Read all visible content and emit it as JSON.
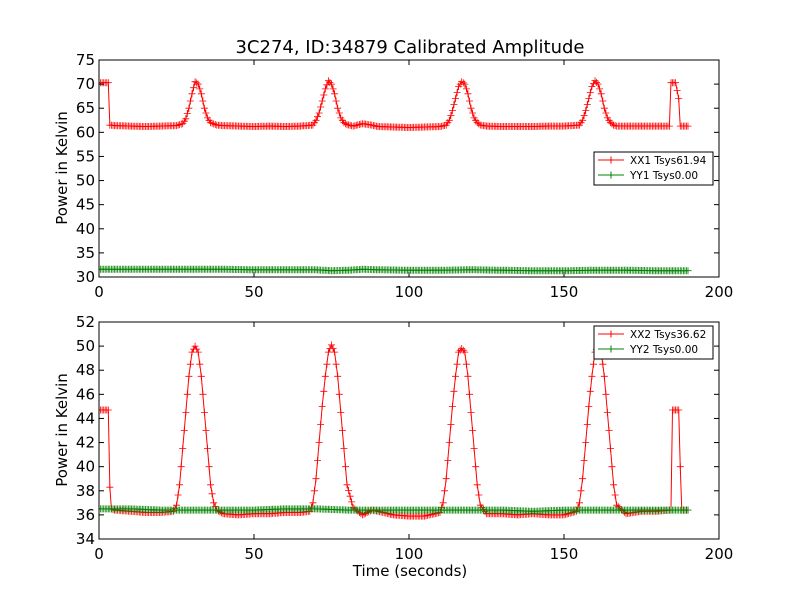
{
  "colors": {
    "xx": "#ff0000",
    "yy": "#008000",
    "axes": "#000000",
    "background": "#ffffff"
  },
  "chart_data": [
    {
      "type": "line",
      "title": "3C274, ID:34879 Calibrated Amplitude",
      "xlabel": "",
      "ylabel": "Power in Kelvin",
      "xlim": [
        0,
        200
      ],
      "ylim": [
        30,
        75
      ],
      "xticks": [
        0,
        50,
        100,
        150,
        200
      ],
      "yticks": [
        30,
        35,
        40,
        45,
        50,
        55,
        60,
        65,
        70,
        75
      ],
      "grid": false,
      "legend_position": "right",
      "series": [
        {
          "name": "XX1 Tsys61.94",
          "color": "#ff0000",
          "marker": "plus",
          "x": [
            0,
            2,
            3,
            3.5,
            5,
            10,
            15,
            20,
            25,
            27,
            28,
            29,
            30,
            31,
            32,
            33,
            34,
            35,
            36,
            38,
            40,
            45,
            50,
            55,
            60,
            65,
            69,
            70,
            71,
            72,
            73,
            74,
            75,
            76,
            77,
            78,
            79,
            80,
            82,
            85,
            88,
            90,
            95,
            100,
            105,
            110,
            112,
            113,
            114,
            115,
            116,
            117,
            118,
            119,
            120,
            121,
            122,
            123,
            125,
            130,
            135,
            140,
            145,
            150,
            155,
            156,
            157,
            158,
            159,
            160,
            161,
            162,
            163,
            164,
            165,
            166,
            167,
            170,
            175,
            180,
            184,
            184.5,
            185,
            186,
            187,
            187.5,
            188,
            190
          ],
          "y": [
            70.3,
            70.3,
            70.3,
            61.5,
            61.4,
            61.3,
            61.2,
            61.3,
            61.4,
            61.8,
            62.8,
            65,
            68,
            70.5,
            70,
            68,
            65,
            63,
            62,
            61.5,
            61.4,
            61.3,
            61.2,
            61.3,
            61.2,
            61.3,
            61.5,
            62.5,
            64,
            66.5,
            69,
            70.7,
            70,
            68,
            65,
            63,
            62,
            61.6,
            61.3,
            61.8,
            61.5,
            61.2,
            61.1,
            61.0,
            61.1,
            61.2,
            61.5,
            62.5,
            64.5,
            67,
            69.5,
            70.5,
            70,
            68,
            65,
            63,
            62,
            61.5,
            61.3,
            61.2,
            61.2,
            61.2,
            61.3,
            61.3,
            61.5,
            62.5,
            64.5,
            67,
            69.5,
            70.7,
            70,
            68,
            65,
            63,
            62,
            61.5,
            61.3,
            61.3,
            61.3,
            61.3,
            61.3,
            70.3,
            70.3,
            70.3,
            67,
            61.3,
            61.3,
            61.3
          ]
        },
        {
          "name": "YY1 Tsys0.00",
          "color": "#008000",
          "marker": "plus",
          "x": [
            0,
            10,
            20,
            30,
            40,
            50,
            60,
            70,
            75,
            80,
            85,
            90,
            100,
            110,
            120,
            130,
            140,
            150,
            160,
            170,
            180,
            190
          ],
          "y": [
            31.6,
            31.6,
            31.6,
            31.6,
            31.6,
            31.5,
            31.5,
            31.5,
            31.3,
            31.4,
            31.6,
            31.5,
            31.4,
            31.4,
            31.5,
            31.4,
            31.3,
            31.3,
            31.4,
            31.4,
            31.3,
            31.3
          ]
        }
      ]
    },
    {
      "type": "line",
      "title": "",
      "xlabel": "Time (seconds)",
      "ylabel": "Power in Kelvin",
      "xlim": [
        0,
        200
      ],
      "ylim": [
        34,
        52
      ],
      "xticks": [
        0,
        50,
        100,
        150,
        200
      ],
      "yticks": [
        34,
        36,
        38,
        40,
        42,
        44,
        46,
        48,
        50,
        52
      ],
      "grid": false,
      "legend_position": "top-right",
      "series": [
        {
          "name": "XX2 Tsys36.62",
          "color": "#ff0000",
          "marker": "plus",
          "x": [
            0,
            2,
            3,
            3.5,
            4,
            5,
            10,
            15,
            20,
            24,
            25,
            26,
            27,
            28,
            29,
            30,
            31,
            32,
            33,
            34,
            35,
            36,
            37,
            38,
            40,
            45,
            50,
            55,
            60,
            65,
            68,
            69,
            70,
            71,
            72,
            73,
            74,
            75,
            76,
            77,
            78,
            79,
            80,
            82,
            85,
            88,
            90,
            95,
            100,
            105,
            110,
            111,
            112,
            113,
            114,
            115,
            116,
            117,
            118,
            119,
            120,
            121,
            122,
            123,
            125,
            130,
            135,
            140,
            145,
            150,
            154,
            155,
            156,
            157,
            158,
            159,
            160,
            161,
            162,
            163,
            164,
            165,
            166,
            167,
            170,
            175,
            180,
            184,
            184.5,
            185,
            186,
            187,
            187.5,
            188,
            190
          ],
          "y": [
            44.7,
            44.7,
            44.7,
            38.3,
            36.5,
            36.4,
            36.3,
            36.2,
            36.2,
            36.3,
            36.8,
            38.5,
            41.5,
            44.5,
            47.5,
            49.5,
            50,
            49.5,
            47.5,
            44.5,
            41.5,
            38.5,
            37,
            36.4,
            36.1,
            36.0,
            36.1,
            36.1,
            36.2,
            36.2,
            36.3,
            37,
            39,
            42,
            45,
            47.5,
            49.5,
            50.1,
            49.5,
            47.5,
            44.5,
            41.5,
            38.5,
            36.6,
            36.0,
            36.4,
            36.3,
            36.0,
            35.9,
            35.9,
            36.2,
            37,
            39,
            42,
            45,
            47.5,
            49.5,
            49.8,
            49.5,
            47.5,
            44.5,
            41.5,
            38.5,
            36.8,
            36.1,
            36.1,
            36.0,
            36.1,
            36.0,
            36.0,
            36.3,
            37,
            39,
            42,
            45,
            47.5,
            49.5,
            49.9,
            49.5,
            47.5,
            44.5,
            41.5,
            38.5,
            36.8,
            36.1,
            36.3,
            36.3,
            36.4,
            36.4,
            44.7,
            44.7,
            44.7,
            40,
            36.4,
            36.4
          ]
        },
        {
          "name": "YY2 Tsys0.00",
          "color": "#008000",
          "marker": "plus",
          "x": [
            0,
            10,
            20,
            30,
            40,
            50,
            60,
            70,
            80,
            90,
            100,
            110,
            120,
            130,
            140,
            150,
            160,
            170,
            180,
            190
          ],
          "y": [
            36.5,
            36.5,
            36.4,
            36.4,
            36.4,
            36.4,
            36.5,
            36.5,
            36.4,
            36.4,
            36.4,
            36.4,
            36.4,
            36.4,
            36.3,
            36.4,
            36.4,
            36.4,
            36.4,
            36.4
          ]
        }
      ]
    }
  ]
}
